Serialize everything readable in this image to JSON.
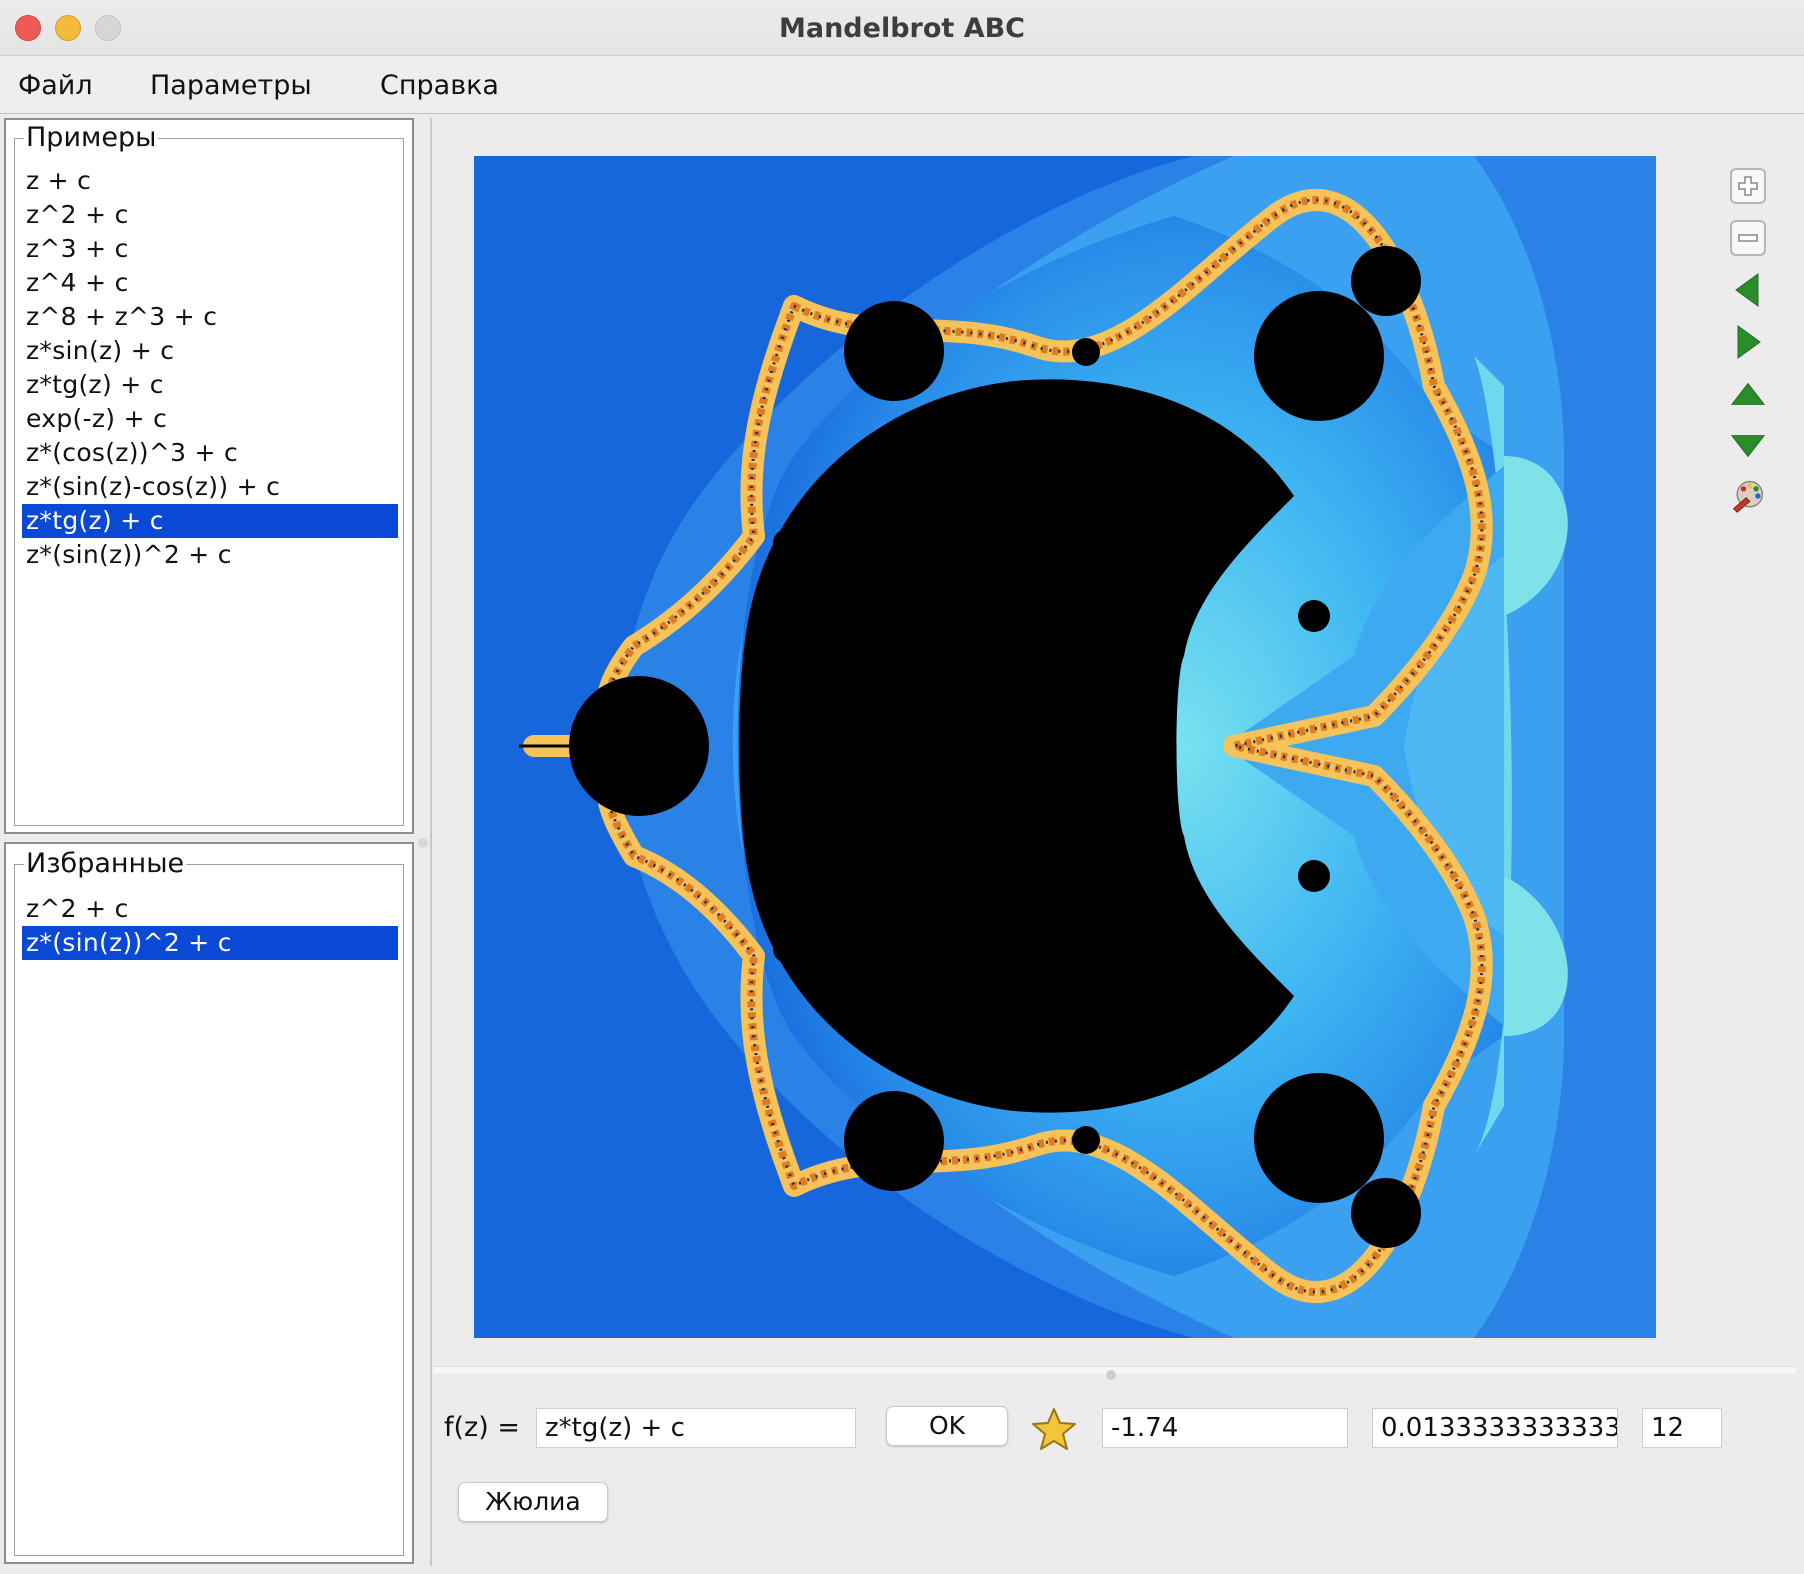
{
  "window": {
    "title": "Mandelbrot ABC"
  },
  "menu": {
    "file": "Файл",
    "params": "Параметры",
    "help": "Справка"
  },
  "examples": {
    "title": "Примеры",
    "items": [
      "z + c",
      "z^2 + c",
      "z^3 + c",
      "z^4 + c",
      "z^8 + z^3 + c",
      "z*sin(z) + c",
      "z*tg(z) + c",
      "exp(-z) + c",
      "z*(cos(z))^3 + c",
      "z*(sin(z)-cos(z)) + c",
      "z*tg(z) + c",
      "z*(sin(z))^2 + c"
    ],
    "selected_index": 10
  },
  "favorites": {
    "title": "Избранные",
    "items": [
      "z^2 + c",
      "z*(sin(z))^2 + c"
    ],
    "selected_index": 1
  },
  "toolbar": {
    "icons": [
      "zoom-in-icon",
      "zoom-out-icon",
      "arrow-left-icon",
      "arrow-right-icon",
      "arrow-up-icon",
      "arrow-down-icon",
      "palette-icon"
    ]
  },
  "controls": {
    "fz_label": "f(z) =",
    "formula": "z*tg(z) + c",
    "ok": "OK",
    "center_x": "-1.74",
    "scale": "0.013333333333333",
    "iterations": "12",
    "julia": "Жюлиа"
  },
  "colors": {
    "selection": "#0a48d6",
    "fractal_interior": "#000000",
    "fractal_outer": "#1565db"
  }
}
